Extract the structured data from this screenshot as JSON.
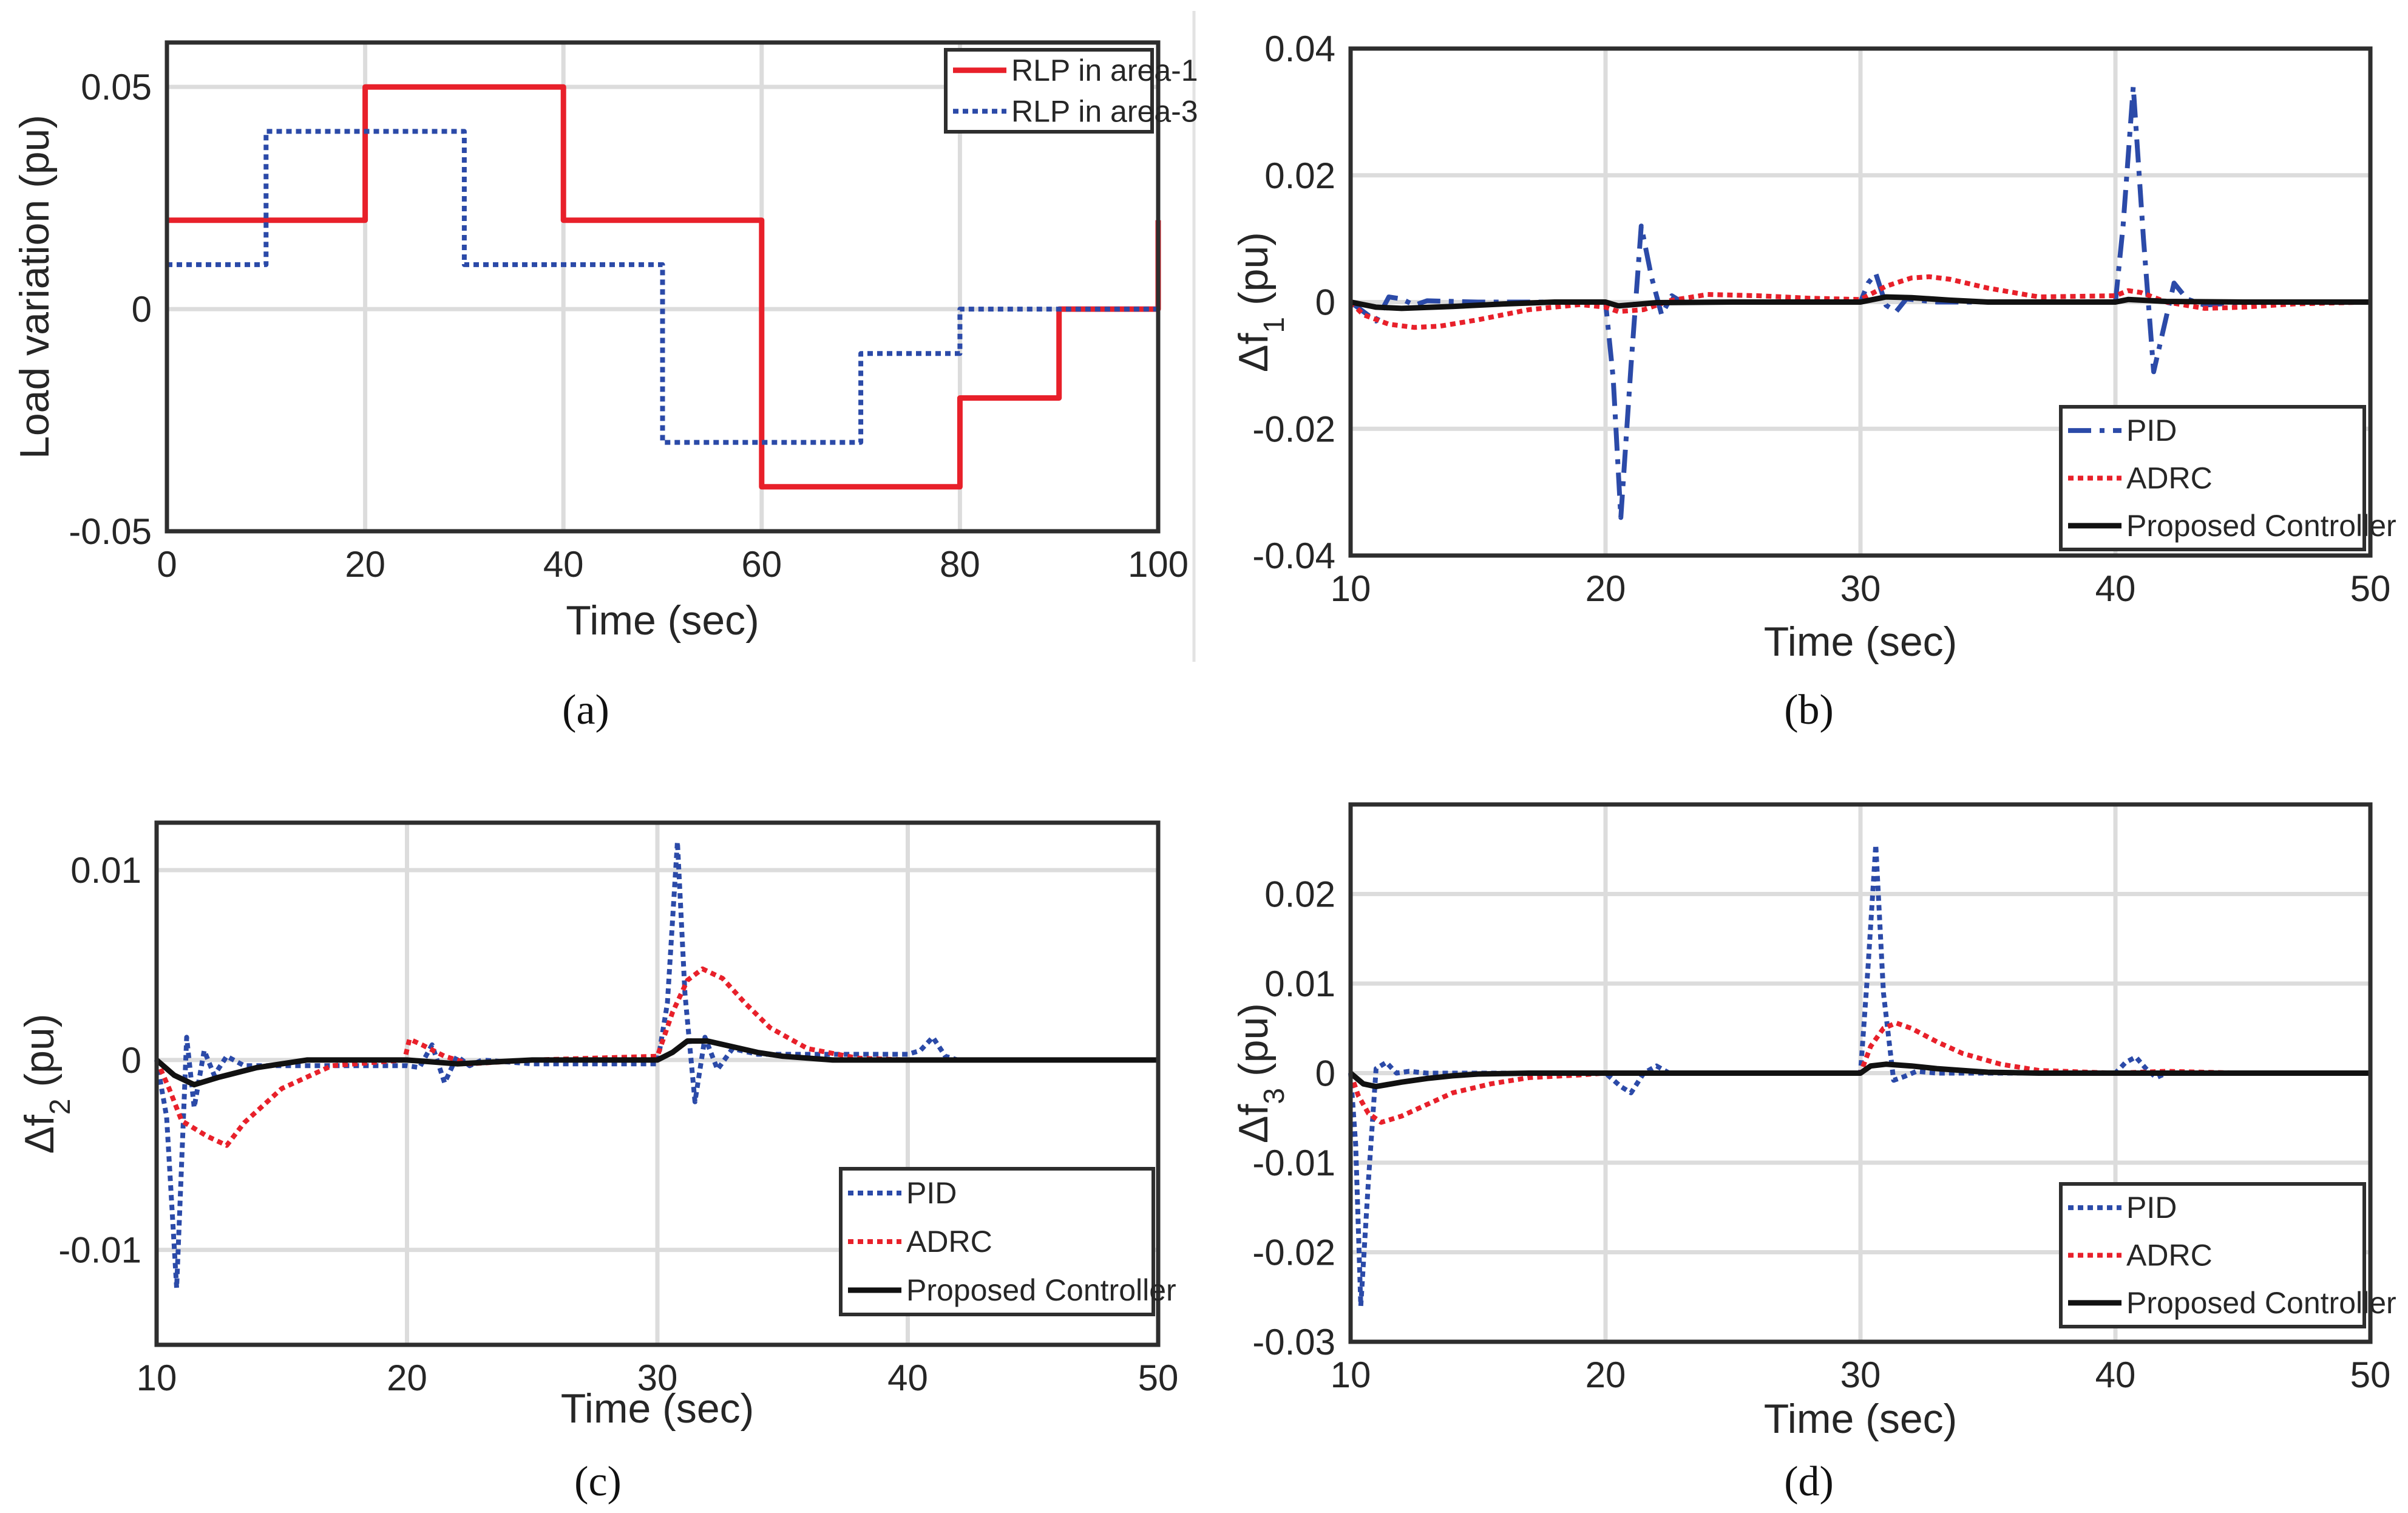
{
  "chart_data": [
    {
      "id": "a",
      "type": "line",
      "caption": "(a)",
      "title": "",
      "xlabel": "Time (sec)",
      "ylabel": "Load variation (pu)",
      "xlim": [
        0,
        100
      ],
      "ylim": [
        -0.05,
        0.06
      ],
      "xticks": [
        0,
        20,
        40,
        60,
        80,
        100
      ],
      "xticklabels": [
        "0",
        "20",
        "40",
        "60",
        "80",
        "100"
      ],
      "yticks": [
        -0.05,
        0,
        0.05
      ],
      "yticklabels": [
        "-0.05",
        "0",
        "0.05"
      ],
      "grid": true,
      "legend_position": "top-right",
      "series": [
        {
          "name": "RLP in area-1",
          "color": "#e8202a",
          "style": "solid",
          "x": [
            0,
            20,
            20,
            40,
            40,
            60,
            60,
            80,
            80,
            90,
            90,
            100,
            100
          ],
          "y": [
            0.02,
            0.02,
            0.05,
            0.05,
            0.02,
            0.02,
            -0.04,
            -0.04,
            -0.02,
            -0.02,
            0,
            0,
            0.02
          ]
        },
        {
          "name": "RLP in area-3",
          "color": "#2b4aa8",
          "style": "dotted",
          "x": [
            0,
            10,
            10,
            30,
            30,
            50,
            50,
            70,
            70,
            80,
            80,
            100
          ],
          "y": [
            0.01,
            0.01,
            0.04,
            0.04,
            0.01,
            0.01,
            -0.03,
            -0.03,
            -0.01,
            -0.01,
            0,
            0
          ]
        }
      ]
    },
    {
      "id": "b",
      "type": "line",
      "caption": "(b)",
      "title": "",
      "xlabel": "Time (sec)",
      "ylabel_main": "Δf",
      "ylabel_sub": "1",
      "ylabel_unit": " (pu)",
      "xlim": [
        10,
        50
      ],
      "ylim": [
        -0.04,
        0.04
      ],
      "xticks": [
        10,
        20,
        30,
        40,
        50
      ],
      "xticklabels": [
        "10",
        "20",
        "30",
        "40",
        "50"
      ],
      "yticks": [
        -0.04,
        -0.02,
        0,
        0.02,
        0.04
      ],
      "yticklabels": [
        "-0.04",
        "-0.02",
        "0",
        "0.02",
        "0.04"
      ],
      "grid": true,
      "legend_position": "bottom-right",
      "series": [
        {
          "name": "PID",
          "color": "#2b4aa8",
          "style": "dashdot",
          "x": [
            10,
            10.5,
            11,
            11.5,
            12,
            12.5,
            13,
            15,
            20,
            20.3,
            20.6,
            21.0,
            21.4,
            21.8,
            22.2,
            22.6,
            23,
            25,
            30,
            30.3,
            30.6,
            31.0,
            31.4,
            31.8,
            33,
            40,
            40.3,
            40.7,
            41.1,
            41.5,
            41.9,
            42.3,
            42.8,
            43.5,
            45,
            50
          ],
          "y": [
            0,
            -0.0015,
            -0.003,
            0.0008,
            0.0005,
            -0.0005,
            0.0002,
            0,
            0,
            -0.012,
            -0.034,
            -0.01,
            0.012,
            0.004,
            -0.002,
            0.001,
            0,
            0,
            0,
            0.003,
            0.0045,
            -0.0005,
            -0.0015,
            0.0005,
            0,
            0,
            0.012,
            0.034,
            0.01,
            -0.011,
            -0.004,
            0.003,
            0.0005,
            -0.0005,
            0,
            0
          ]
        },
        {
          "name": "ADRC",
          "color": "#e8202a",
          "style": "dotted",
          "x": [
            10,
            10.5,
            11.5,
            12.5,
            13.5,
            15,
            17,
            19,
            20,
            20.5,
            21.5,
            22.5,
            24,
            26,
            28,
            30,
            31,
            32,
            32.7,
            33.5,
            35,
            37,
            40,
            40.5,
            41,
            42,
            43.5,
            45,
            47,
            50
          ],
          "y": [
            0,
            -0.002,
            -0.0035,
            -0.004,
            -0.0038,
            -0.0028,
            -0.0012,
            -0.0004,
            -0.0008,
            -0.0015,
            -0.0012,
            0.0002,
            0.0012,
            0.001,
            0.0006,
            0.0004,
            0.0025,
            0.0038,
            0.004,
            0.0036,
            0.0022,
            0.0008,
            0.001,
            0.0018,
            0.0015,
            0,
            -0.001,
            -0.0008,
            -0.0003,
            0
          ]
        },
        {
          "name": "Proposed Controller",
          "color": "#111111",
          "style": "solid",
          "x": [
            10,
            11,
            12,
            14,
            16,
            18,
            20,
            20.5,
            22,
            25,
            30,
            31,
            32,
            33.5,
            35,
            38,
            40,
            40.5,
            42,
            45,
            50
          ],
          "y": [
            0,
            -0.0008,
            -0.001,
            -0.0007,
            -0.0003,
            0,
            0,
            -0.0006,
            -0.0001,
            0,
            0,
            0.0008,
            0.0007,
            0.0003,
            0,
            0,
            0,
            0.0004,
            0.0001,
            0,
            0
          ]
        }
      ]
    },
    {
      "id": "c",
      "type": "line",
      "caption": "(c)",
      "title": "",
      "xlabel": "Time (sec)",
      "ylabel_main": "Δf",
      "ylabel_sub": "2",
      "ylabel_unit": " (pu)",
      "xlim": [
        10,
        50
      ],
      "ylim": [
        -0.015,
        0.0125
      ],
      "xticks": [
        10,
        20,
        30,
        40,
        50
      ],
      "xticklabels": [
        "10",
        "20",
        "30",
        "40",
        "50"
      ],
      "yticks": [
        -0.01,
        0,
        0.01
      ],
      "yticklabels": [
        "-0.01",
        "0",
        "0.01"
      ],
      "grid": true,
      "legend_position": "bottom-right",
      "series": [
        {
          "name": "PID",
          "color": "#2b4aa8",
          "style": "dotted",
          "x": [
            10,
            10.4,
            10.8,
            11.2,
            11.5,
            11.9,
            12.3,
            12.8,
            13.5,
            15,
            20,
            20.5,
            21,
            21.5,
            22,
            22.5,
            23,
            25,
            30,
            30.4,
            30.8,
            31.1,
            31.5,
            31.9,
            32.4,
            33,
            34,
            40,
            40.5,
            41,
            41.5,
            42,
            45,
            50
          ],
          "y": [
            0,
            -0.003,
            -0.012,
            0.0012,
            -0.0025,
            0.0005,
            -0.0008,
            0.0002,
            -0.0003,
            -0.0003,
            -0.0003,
            -0.0004,
            0.0008,
            -0.0012,
            0.0002,
            -0.0003,
            0,
            -0.0002,
            -0.0002,
            0.003,
            0.0115,
            0.0035,
            -0.0022,
            0.0012,
            -0.0005,
            0.0006,
            0.0003,
            0.0003,
            0.0005,
            0.0012,
            0.0002,
            0,
            0,
            0
          ]
        },
        {
          "name": "ADRC",
          "color": "#e8202a",
          "style": "dotted",
          "x": [
            10,
            10.5,
            11,
            12,
            12.8,
            13.5,
            15,
            17,
            19.9,
            20.1,
            20.6,
            21.5,
            22.5,
            25,
            30,
            30.6,
            31.2,
            31.8,
            32.6,
            33.5,
            34.5,
            36,
            38,
            40,
            42,
            45,
            50
          ],
          "y": [
            0,
            -0.0015,
            -0.0032,
            -0.004,
            -0.0045,
            -0.0033,
            -0.0015,
            -0.0003,
            0,
            0.0011,
            0.0008,
            0.0002,
            -0.0002,
            0,
            0.0002,
            0.0025,
            0.0042,
            0.0048,
            0.0043,
            0.003,
            0.0017,
            0.0006,
            0.0001,
            0,
            0,
            0,
            0
          ]
        },
        {
          "name": "Proposed Controller",
          "color": "#111111",
          "style": "solid",
          "x": [
            10,
            10.7,
            11.5,
            12.5,
            14,
            16,
            18,
            20,
            22,
            25,
            30,
            30.6,
            31.2,
            32,
            33,
            34,
            35,
            37,
            40,
            50
          ],
          "y": [
            0,
            -0.0008,
            -0.0013,
            -0.0009,
            -0.0004,
            0,
            0,
            0,
            -0.0002,
            0,
            0,
            0.0004,
            0.001,
            0.001,
            0.0007,
            0.0004,
            0.0002,
            0,
            0,
            0
          ]
        }
      ]
    },
    {
      "id": "d",
      "type": "line",
      "caption": "(d)",
      "title": "",
      "xlabel": "Time (sec)",
      "ylabel_main": "Δf",
      "ylabel_sub": "3",
      "ylabel_unit": " (pu)",
      "xlim": [
        10,
        50
      ],
      "ylim": [
        -0.03,
        0.03
      ],
      "xticks": [
        10,
        20,
        30,
        40,
        50
      ],
      "xticklabels": [
        "10",
        "20",
        "30",
        "40",
        "50"
      ],
      "yticks": [
        -0.03,
        -0.02,
        -0.01,
        0,
        0.01,
        0.02
      ],
      "yticklabels": [
        "-0.03",
        "-0.02",
        "-0.01",
        "0",
        "0.01",
        "0.02"
      ],
      "grid": true,
      "legend_position": "bottom-right",
      "series": [
        {
          "name": "PID",
          "color": "#2b4aa8",
          "style": "dotted",
          "x": [
            10,
            10.2,
            10.4,
            10.7,
            11.0,
            11.4,
            11.8,
            12.3,
            13,
            15,
            20,
            20.6,
            21.0,
            21.5,
            22.0,
            22.5,
            25,
            30,
            30.3,
            30.6,
            30.9,
            31.3,
            31.7,
            32.2,
            33,
            40,
            40.4,
            40.8,
            41.2,
            41.6,
            42,
            45,
            50
          ],
          "y": [
            0,
            -0.008,
            -0.026,
            -0.012,
            0.0005,
            0.0012,
            0,
            0.0002,
            0,
            0,
            0,
            -0.0015,
            -0.0022,
            0,
            0.0008,
            0,
            0,
            0,
            0.012,
            0.0255,
            0.009,
            -0.0008,
            -0.0004,
            0.0002,
            0,
            0,
            0.0012,
            0.0018,
            0.0005,
            -0.0005,
            0,
            0,
            0
          ]
        },
        {
          "name": "ADRC",
          "color": "#e8202a",
          "style": "dotted",
          "x": [
            10,
            10.3,
            10.7,
            11.2,
            12,
            13,
            14,
            15.5,
            17,
            19,
            20,
            25,
            30,
            30.4,
            30.9,
            31.4,
            32,
            33,
            34,
            35.5,
            37,
            40,
            42,
            45,
            50
          ],
          "y": [
            0,
            -0.0025,
            -0.0045,
            -0.0055,
            -0.0048,
            -0.0035,
            -0.0022,
            -0.0012,
            -0.0005,
            -0.0002,
            0,
            0,
            0,
            0.003,
            0.005,
            0.0056,
            0.005,
            0.0035,
            0.0022,
            0.001,
            0.0003,
            0,
            0.0002,
            0,
            0
          ]
        },
        {
          "name": "Proposed Controller",
          "color": "#111111",
          "style": "solid",
          "x": [
            10,
            10.5,
            11,
            12,
            13,
            14,
            15,
            17,
            20,
            25,
            30,
            30.4,
            31,
            32,
            33,
            34,
            35,
            37,
            40,
            50
          ],
          "y": [
            0,
            -0.0012,
            -0.0015,
            -0.001,
            -0.0006,
            -0.0003,
            -0.0001,
            0,
            0,
            0,
            0,
            0.0008,
            0.001,
            0.0008,
            0.0005,
            0.0003,
            0.0001,
            0,
            0,
            0
          ]
        }
      ]
    }
  ]
}
